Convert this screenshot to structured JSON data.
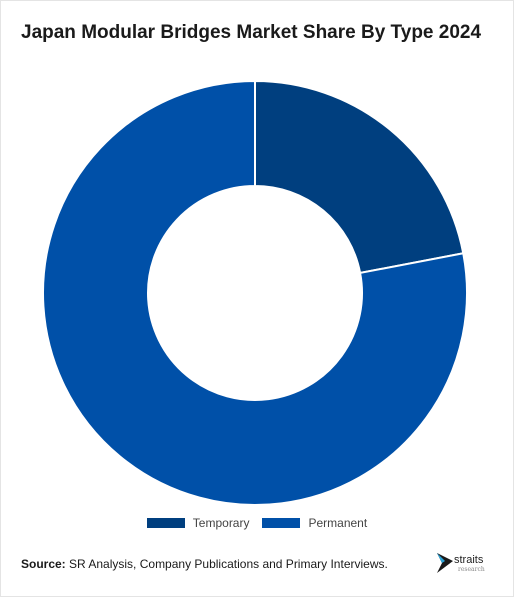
{
  "title": "Japan Modular Bridges Market Share By Type 2024",
  "source_label": "Source:",
  "source_text": "SR Analysis, Company Publications and Primary Interviews.",
  "logo": {
    "word": "straits",
    "sub": "research",
    "icon": "straits-logo-arrow-icon"
  },
  "colors": {
    "temporary": "#003f7f",
    "permanent": "#0050a8"
  },
  "chart_data": {
    "type": "pie",
    "donut": true,
    "title": "Japan Modular Bridges Market Share By Type 2024",
    "categories": [
      "Temporary",
      "Permanent"
    ],
    "values": [
      22,
      78
    ],
    "legend_position": "bottom"
  }
}
